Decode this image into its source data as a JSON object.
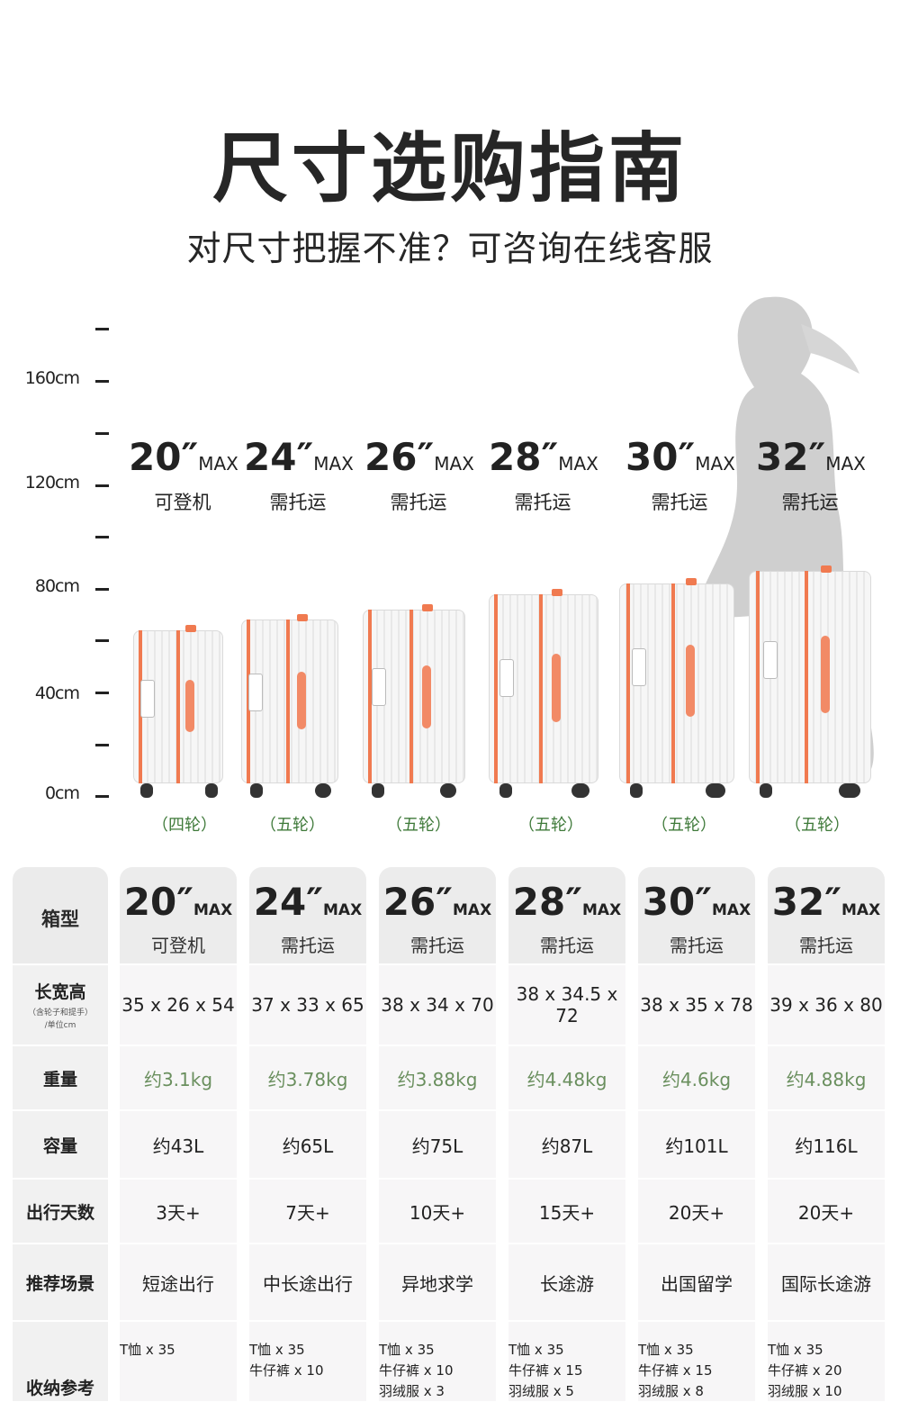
{
  "title": "尺寸选购指南",
  "subtitle": "对尺寸把握不准？可咨询在线客服",
  "ruler": {
    "labels": [
      "160cm",
      "120cm",
      "80cm",
      "40cm",
      "0cm"
    ]
  },
  "cases": [
    {
      "size": "20″",
      "max": "MAX",
      "note": "可登机",
      "wheels": "（四轮）"
    },
    {
      "size": "24″",
      "max": "MAX",
      "note": "需托运",
      "wheels": "（五轮）"
    },
    {
      "size": "26″",
      "max": "MAX",
      "note": "需托运",
      "wheels": "（五轮）"
    },
    {
      "size": "28″",
      "max": "MAX",
      "note": "需托运",
      "wheels": "（五轮）"
    },
    {
      "size": "30″",
      "max": "MAX",
      "note": "需托运",
      "wheels": "（五轮）"
    },
    {
      "size": "32″",
      "max": "MAX",
      "note": "需托运",
      "wheels": "（五轮）"
    }
  ],
  "table": {
    "row_labels": {
      "model": "箱型",
      "dims": "长宽高",
      "dims_note1": "（含轮子和提手）",
      "dims_note2": "/单位cm",
      "weight": "重量",
      "capacity": "容量",
      "days": "出行天数",
      "scene": "推荐场景",
      "storage": "收纳参考"
    },
    "columns": [
      {
        "size": "20″",
        "max": "MAX",
        "note": "可登机",
        "dims": "35 x 26 x 54",
        "weight": "约3.1kg",
        "capacity": "约43L",
        "days": "3天+",
        "scene": "短途出行",
        "storage": [
          "T恤 x 35"
        ]
      },
      {
        "size": "24″",
        "max": "MAX",
        "note": "需托运",
        "dims": "37 x 33 x 65",
        "weight": "约3.78kg",
        "capacity": "约65L",
        "days": "7天+",
        "scene": "中长途出行",
        "storage": [
          "T恤 x 35",
          "牛仔裤 x 10"
        ]
      },
      {
        "size": "26″",
        "max": "MAX",
        "note": "需托运",
        "dims": "38 x 34 x 70",
        "weight": "约3.88kg",
        "capacity": "约75L",
        "days": "10天+",
        "scene": "异地求学",
        "storage": [
          "T恤 x 35",
          "牛仔裤 x 10",
          "羽绒服 x 3"
        ]
      },
      {
        "size": "28″",
        "max": "MAX",
        "note": "需托运",
        "dims": "38 x 34.5 x 72",
        "weight": "约4.48kg",
        "capacity": "约87L",
        "days": "15天+",
        "scene": "长途游",
        "storage": [
          "T恤 x 35",
          "牛仔裤 x 15",
          "羽绒服 x 5"
        ]
      },
      {
        "size": "30″",
        "max": "MAX",
        "note": "需托运",
        "dims": "38 x 35 x 78",
        "weight": "约4.6kg",
        "capacity": "约101L",
        "days": "20天+",
        "scene": "出国留学",
        "storage": [
          "T恤 x 35",
          "牛仔裤 x 15",
          "羽绒服 x 8"
        ]
      },
      {
        "size": "32″",
        "max": "MAX",
        "note": "需托运",
        "dims": "39 x 36 x 80",
        "weight": "约4.88kg",
        "capacity": "约116L",
        "days": "20天+",
        "scene": "国际长途游",
        "storage": [
          "T恤 x 35",
          "牛仔裤 x 20",
          "羽绒服 x 10"
        ]
      }
    ]
  },
  "colors": {
    "accent": "#f07a50",
    "green_text": "#6a8f5e",
    "wheel_label": "#3f7a3a"
  }
}
